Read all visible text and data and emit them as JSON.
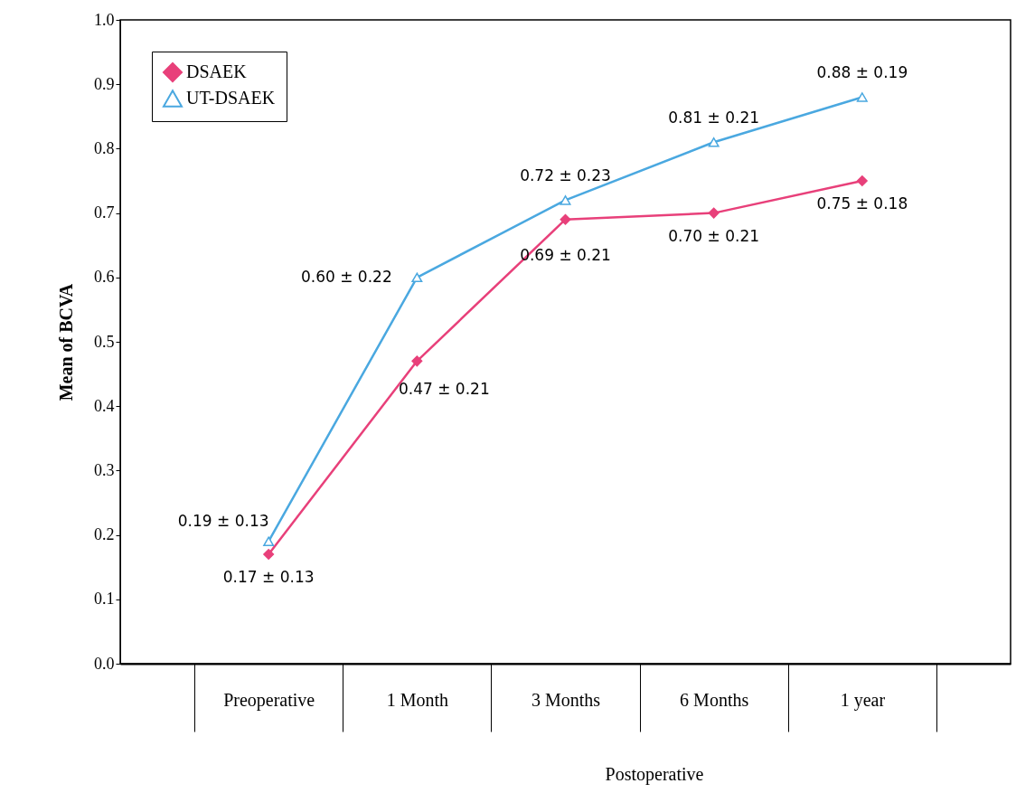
{
  "chart_data": {
    "type": "line",
    "ylabel": "Mean of BCVA",
    "categories": [
      "Preoperative",
      "1 Month",
      "3 Months",
      "6 Months",
      "1 year"
    ],
    "ylim": [
      0,
      1
    ],
    "yticks": [
      {
        "value": 0,
        "label": "0.0"
      },
      0.1,
      0.2,
      0.3,
      0.4,
      0.5,
      0.6,
      0.7,
      0.8,
      0.9,
      {
        "value": 1,
        "label": "1.0"
      }
    ],
    "grid": false,
    "legend": "top left",
    "series": [
      {
        "name": "DSAEK",
        "color": "#e8407a",
        "marker": "diamond",
        "values": [
          0.17,
          0.47,
          0.69,
          0.7,
          0.75
        ],
        "value_labels": [
          "0.17 ± 0.13",
          "0.47 ± 0.21",
          "0.69 ± 0.21",
          "0.70 ± 0.21",
          "0.75 ± 0.18"
        ]
      },
      {
        "name": "UT-DSAEK",
        "color": "#4aa8e0",
        "marker": "triangle",
        "values": [
          0.19,
          0.6,
          0.72,
          0.81,
          0.88
        ],
        "value_labels": [
          "0.19 ± 0.13",
          "0.60 ± 0.22",
          "0.72 ± 0.23",
          "0.81 ± 0.21",
          "0.88 ± 0.19"
        ]
      }
    ],
    "annotations": [
      "Postoperative"
    ]
  }
}
